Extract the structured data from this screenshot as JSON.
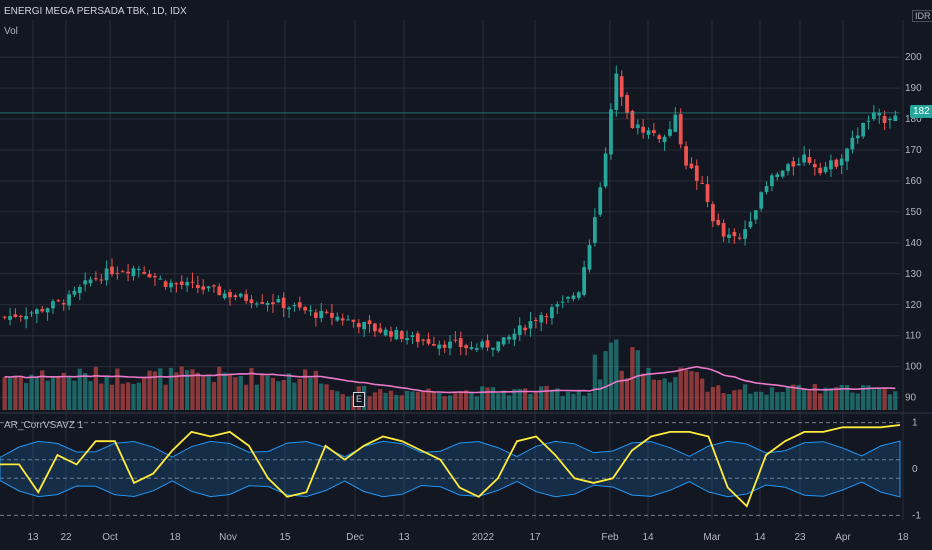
{
  "header": {
    "title": "ENERGI MEGA PERSADA TBK, 1D, IDX",
    "volume_label": "Vol",
    "currency": "IDR",
    "indicator_label": "AR_CorrVSAVZ 1",
    "event_marker": "E"
  },
  "colors": {
    "background": "#131722",
    "up": "#26a69a",
    "down": "#ef5350",
    "volume_ma": "#e879c6",
    "correlation": "#ffeb3b",
    "band": "#2196f3",
    "grid": "#2a2e39",
    "price_line": "#26a69a"
  },
  "chart_data": [
    {
      "type": "candlestick",
      "title": "ENERGI MEGA PERSADA TBK, 1D, IDX",
      "yaxis": {
        "ticks": [
          90,
          100,
          110,
          120,
          130,
          140,
          150,
          160,
          170,
          180,
          190,
          200
        ],
        "range": [
          86,
          212
        ],
        "unit": "IDR"
      },
      "xaxis": {
        "ticks": [
          "13",
          "22",
          "Oct",
          "18",
          "Nov",
          "15",
          "Dec",
          "13",
          "2022",
          "17",
          "Feb",
          "14",
          "Mar",
          "14",
          "23",
          "Apr",
          "18"
        ]
      },
      "last_price": 182,
      "last_price_label": "182",
      "close_path": [
        [
          0,
          116
        ],
        [
          6,
          118
        ],
        [
          12,
          122
        ],
        [
          16,
          128
        ],
        [
          20,
          131
        ],
        [
          25,
          132
        ],
        [
          30,
          127
        ],
        [
          35,
          126
        ],
        [
          40,
          124
        ],
        [
          45,
          122
        ],
        [
          50,
          121
        ],
        [
          54,
          119
        ],
        [
          58,
          117
        ],
        [
          62,
          116
        ],
        [
          66,
          114
        ],
        [
          69,
          112
        ],
        [
          72,
          111
        ],
        [
          76,
          109
        ],
        [
          80,
          108
        ],
        [
          84,
          107
        ],
        [
          87,
          106
        ],
        [
          90,
          107
        ],
        [
          93,
          108
        ],
        [
          96,
          112
        ],
        [
          100,
          117
        ],
        [
          104,
          120
        ],
        [
          107,
          125
        ],
        [
          110,
          148
        ],
        [
          112,
          170
        ],
        [
          114,
          194
        ],
        [
          117,
          178
        ],
        [
          120,
          176
        ],
        [
          123,
          174
        ],
        [
          125,
          180
        ],
        [
          127,
          166
        ],
        [
          130,
          158
        ],
        [
          132,
          148
        ],
        [
          134,
          142
        ],
        [
          137,
          141
        ],
        [
          140,
          152
        ],
        [
          143,
          161
        ],
        [
          146,
          164
        ],
        [
          149,
          168
        ],
        [
          152,
          164
        ],
        [
          155,
          166
        ],
        [
          158,
          173
        ],
        [
          160,
          178
        ],
        [
          162,
          181
        ],
        [
          164,
          180
        ],
        [
          166,
          182
        ]
      ]
    },
    {
      "type": "bar",
      "title": "Vol",
      "moving_average": true
    },
    {
      "type": "line",
      "title": "AR_CorrVSAVZ 1",
      "yaxis": {
        "ticks": [
          -1,
          0,
          1
        ],
        "range": [
          -1.1,
          1.1
        ]
      },
      "reference_lines": [
        -1,
        -0.2,
        0.2,
        1
      ],
      "series": [
        {
          "values": [
            0.1,
            0.1,
            -0.5,
            0.3,
            0.1,
            0.6,
            0.6,
            -0.3,
            -0.1,
            0.4,
            0.8,
            0.7,
            0.8,
            0.5,
            -0.2,
            -0.6,
            -0.5,
            0.5,
            0.2,
            0.5,
            0.7,
            0.6,
            0.4,
            0.2,
            -0.4,
            -0.6,
            -0.2,
            0.6,
            0.7,
            0.3,
            -0.2,
            -0.3,
            -0.2,
            0.4,
            0.7,
            0.8,
            0.8,
            0.7,
            -0.4,
            -0.8,
            0.3,
            0.6,
            0.8,
            0.8,
            0.9,
            0.9,
            0.9,
            0.95
          ]
        }
      ]
    }
  ]
}
